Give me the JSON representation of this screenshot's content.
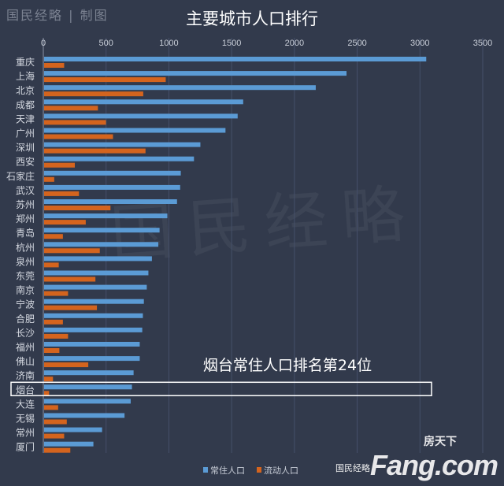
{
  "watermark": "国民经略 | 制图",
  "background_watermark": "国民经略",
  "logo": {
    "text": "Fang.com",
    "sub": "房天下",
    "source": "国民经略"
  },
  "chart_data": {
    "type": "bar",
    "orientation": "horizontal",
    "title": "主要城市人口排行",
    "xlim": [
      0,
      3500
    ],
    "xticks": [
      0,
      500,
      1000,
      1500,
      2000,
      2500,
      3000,
      3500
    ],
    "grid": true,
    "legend_position": "bottom",
    "categories": [
      "重庆",
      "上海",
      "北京",
      "成都",
      "天津",
      "广州",
      "深圳",
      "西安",
      "石家庄",
      "武汉",
      "苏州",
      "郑州",
      "青岛",
      "杭州",
      "泉州",
      "东莞",
      "南京",
      "宁波",
      "合肥",
      "长沙",
      "福州",
      "佛山",
      "济南",
      "烟台",
      "大连",
      "无锡",
      "常州",
      "厦门"
    ],
    "series": [
      {
        "name": "常住人口",
        "color": "#5b9bd5",
        "values": [
          3050,
          2415,
          2170,
          1592,
          1548,
          1451,
          1251,
          1200,
          1095,
          1090,
          1065,
          988,
          926,
          916,
          865,
          837,
          824,
          801,
          793,
          788,
          768,
          768,
          719,
          706,
          696,
          647,
          468,
          399
        ]
      },
      {
        "name": "流动人口",
        "color": "#d4641e",
        "values": [
          166,
          975,
          796,
          435,
          499,
          555,
          814,
          251,
          87,
          284,
          535,
          338,
          156,
          450,
          123,
          415,
          197,
          427,
          156,
          197,
          128,
          358,
          77,
          46,
          118,
          187,
          166,
          215
        ]
      }
    ],
    "annotation": {
      "text": "烟台常住人口排名第24位",
      "highlight_category": "烟台"
    }
  }
}
